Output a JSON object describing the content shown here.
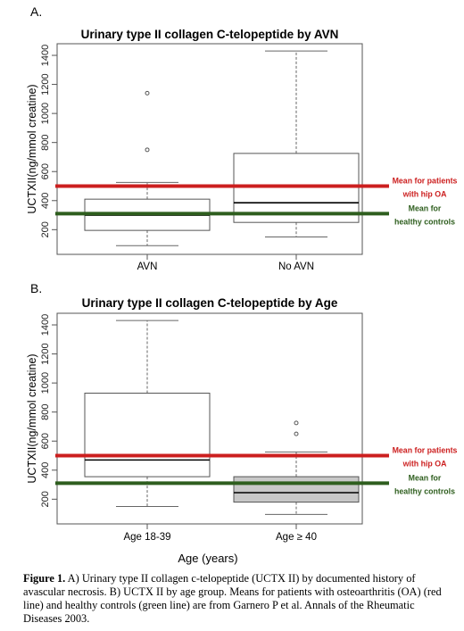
{
  "chart_data": [
    {
      "panel_label": "A.",
      "type": "box",
      "title": "Urinary type II collagen C-telopeptide by AVN",
      "xlabel": "",
      "ylabel": "UCTXII(ng/mmol creatine)",
      "ylim": [
        30,
        1480
      ],
      "yticks": [
        200,
        400,
        600,
        800,
        1000,
        1200,
        1400
      ],
      "categories": [
        "AVN",
        "No AVN"
      ],
      "boxes": [
        {
          "category": "AVN",
          "whisker_low": 90,
          "q1": 195,
          "median": 300,
          "q3": 410,
          "whisker_high": 525,
          "outliers": [
            750,
            1140
          ],
          "fill": "#ffffff"
        },
        {
          "category": "No AVN",
          "whisker_low": 150,
          "q1": 250,
          "median": 385,
          "q3": 725,
          "whisker_high": 1430,
          "outliers": [],
          "fill": "#ffffff"
        }
      ],
      "reference_lines": [
        {
          "value": 500,
          "color": "#cc1f1f",
          "label_line1": "Mean for patients",
          "label_line2": "with hip OA"
        },
        {
          "value": 310,
          "color": "#2e5e1e",
          "label_line1": "Mean for",
          "label_line2": "healthy controls"
        }
      ],
      "grid": false,
      "legend": "none"
    },
    {
      "panel_label": "B.",
      "type": "box",
      "title": "Urinary type II collagen C-telopeptide by Age",
      "xlabel": "Age (years)",
      "ylabel": "UCTXII(ng/mmol creatine)",
      "ylim": [
        30,
        1480
      ],
      "yticks": [
        200,
        400,
        600,
        800,
        1000,
        1200,
        1400
      ],
      "categories": [
        "Age 18-39",
        "Age ≥ 40"
      ],
      "boxes": [
        {
          "category": "Age 18-39",
          "whisker_low": 150,
          "q1": 355,
          "median": 470,
          "q3": 930,
          "whisker_high": 1430,
          "outliers": [],
          "fill": "#ffffff"
        },
        {
          "category": "Age ≥ 40",
          "whisker_low": 95,
          "q1": 180,
          "median": 245,
          "q3": 355,
          "whisker_high": 525,
          "outliers": [
            650,
            725
          ],
          "fill": "#c8c8c8"
        }
      ],
      "reference_lines": [
        {
          "value": 500,
          "color": "#cc1f1f",
          "label_line1": "Mean for patients",
          "label_line2": "with hip OA"
        },
        {
          "value": 310,
          "color": "#2e5e1e",
          "label_line1": "Mean for",
          "label_line2": "healthy controls"
        }
      ],
      "grid": false,
      "legend": "none"
    }
  ],
  "caption": {
    "label": "Figure 1.",
    "text": " A) Urinary type II collagen c-telopeptide (UCTX II) by documented history of avascular necrosis. B) UCTX II by age group. Means for patients with osteoarthritis (OA) (red line) and healthy controls (green line) are from Garnero P et al. Annals of the Rheumatic Diseases 2003."
  }
}
